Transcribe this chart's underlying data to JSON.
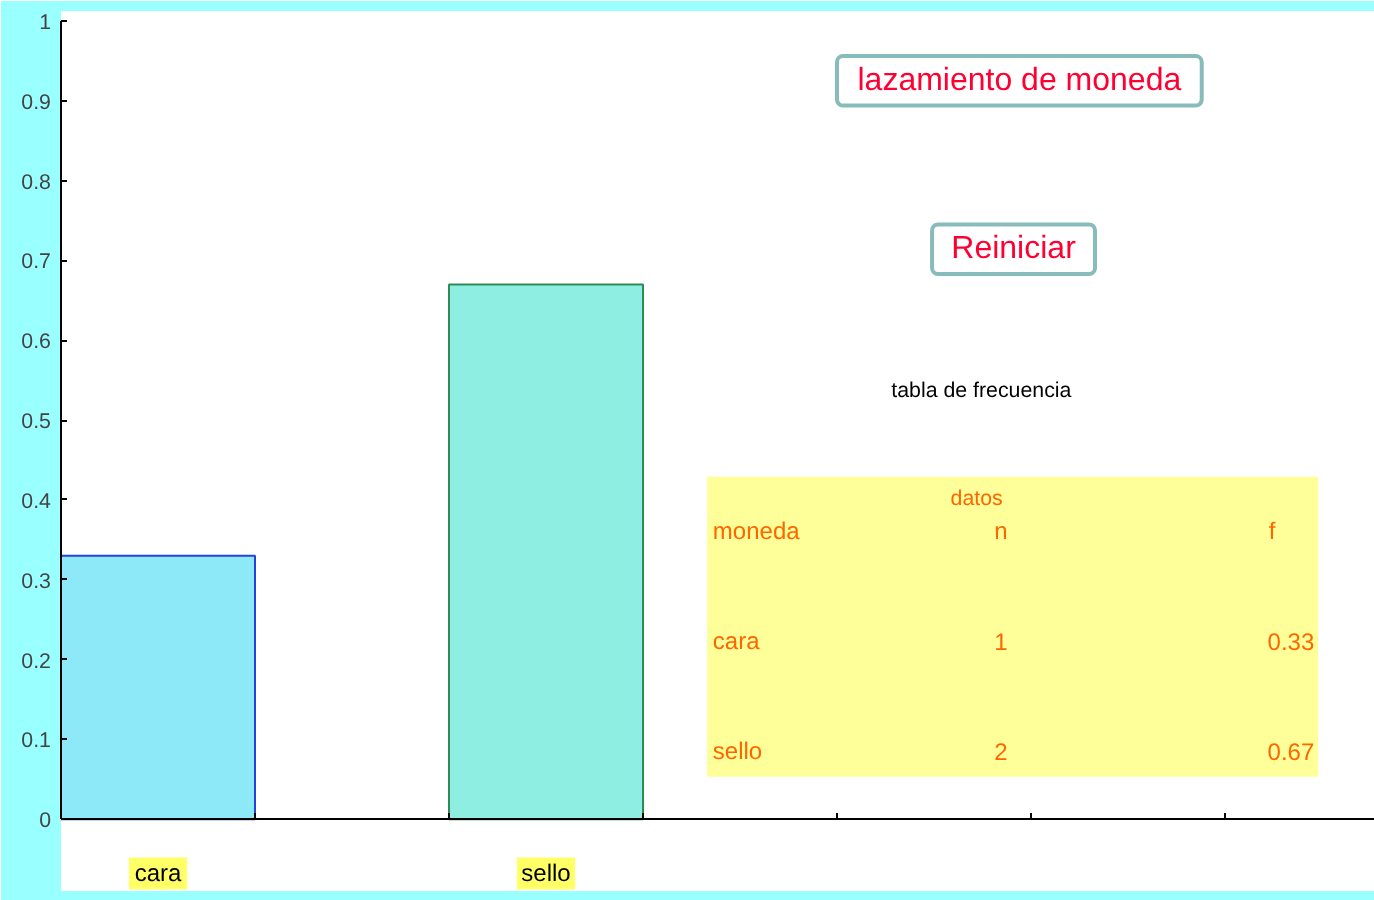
{
  "chart_data": {
    "type": "bar",
    "categories": [
      "cara",
      "sello"
    ],
    "values": [
      0.33,
      0.67
    ],
    "colors": [
      "#8de8f8",
      "#8eeee2"
    ],
    "ylim": [
      0,
      1
    ],
    "yticks": [
      0,
      0.1,
      0.2,
      0.3,
      0.4,
      0.5,
      0.6,
      0.7,
      0.8,
      0.9,
      1
    ],
    "grid": false,
    "annotations": [
      "lazamiento de moneda",
      "Reiniciar",
      "tabla de frecuencia",
      "datos",
      "moneda",
      "n",
      "f",
      "1",
      "2",
      "0.33",
      "0.67"
    ]
  }
}
